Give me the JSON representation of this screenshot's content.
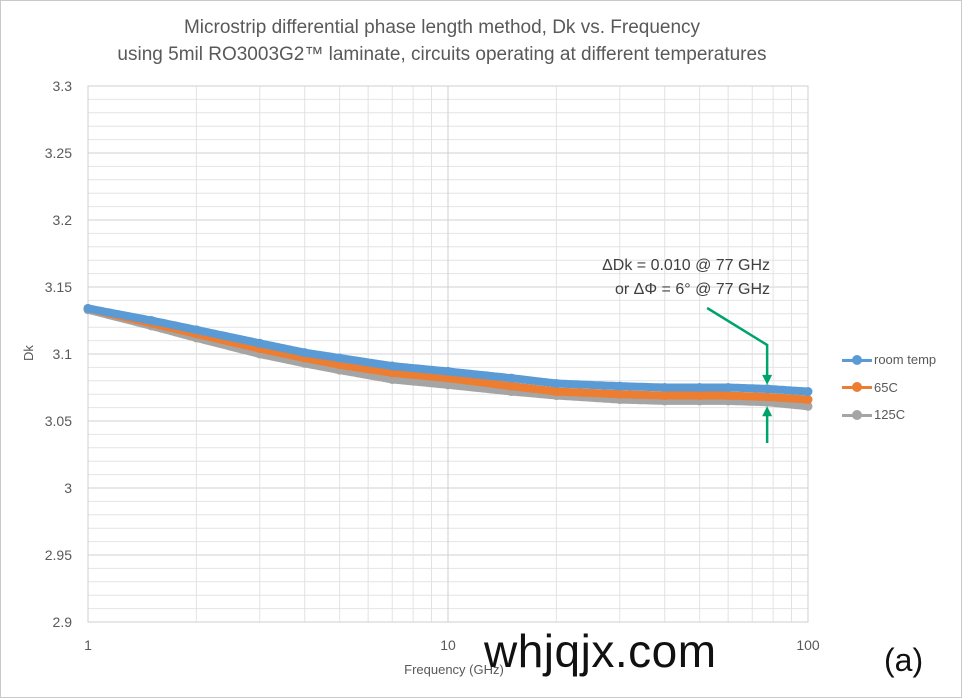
{
  "chart_data": {
    "type": "line",
    "title_line1": "Microstrip differential  phase length method, Dk vs. Frequency",
    "title_line2": "using 5mil RO3003G2™ laminate, circuits operating at different  temperatures",
    "xlabel": "Frequency (GHz)",
    "ylabel": "Dk",
    "x_scale": "log",
    "xlim": [
      1,
      100
    ],
    "ylim": [
      2.9,
      3.3
    ],
    "x_ticks": [
      "1",
      "10",
      "100"
    ],
    "y_ticks": [
      "2.9",
      "2.95",
      "3",
      "3.05",
      "3.1",
      "3.15",
      "3.2",
      "3.25",
      "3.3"
    ],
    "grid": true,
    "legend_position": "right",
    "x": [
      1,
      1.5,
      2,
      3,
      4,
      5,
      7,
      10,
      15,
      20,
      30,
      40,
      50,
      60,
      77,
      100
    ],
    "series": [
      {
        "name": "room temp",
        "color": "#5b9bd5",
        "values": [
          3.134,
          3.125,
          3.118,
          3.108,
          3.101,
          3.097,
          3.091,
          3.087,
          3.082,
          3.078,
          3.076,
          3.075,
          3.075,
          3.075,
          3.074,
          3.072
        ]
      },
      {
        "name": "65C",
        "color": "#ed7d31",
        "values": [
          3.134,
          3.123,
          3.115,
          3.104,
          3.097,
          3.092,
          3.086,
          3.082,
          3.076,
          3.072,
          3.07,
          3.069,
          3.069,
          3.069,
          3.068,
          3.066
        ]
      },
      {
        "name": "125C",
        "color": "#a5a5a5",
        "values": [
          3.133,
          3.121,
          3.112,
          3.1,
          3.093,
          3.088,
          3.081,
          3.077,
          3.072,
          3.069,
          3.066,
          3.065,
          3.065,
          3.065,
          3.064,
          3.061
        ]
      }
    ],
    "annotation": {
      "line1": "ΔDk = 0.010 @ 77 GHz",
      "line2": "or ΔΦ = 6° @ 77 GHz",
      "arrow_color": "#00a36c",
      "at_x": 77
    }
  },
  "watermark": "whjqjx.com",
  "panel_label": "(a)"
}
